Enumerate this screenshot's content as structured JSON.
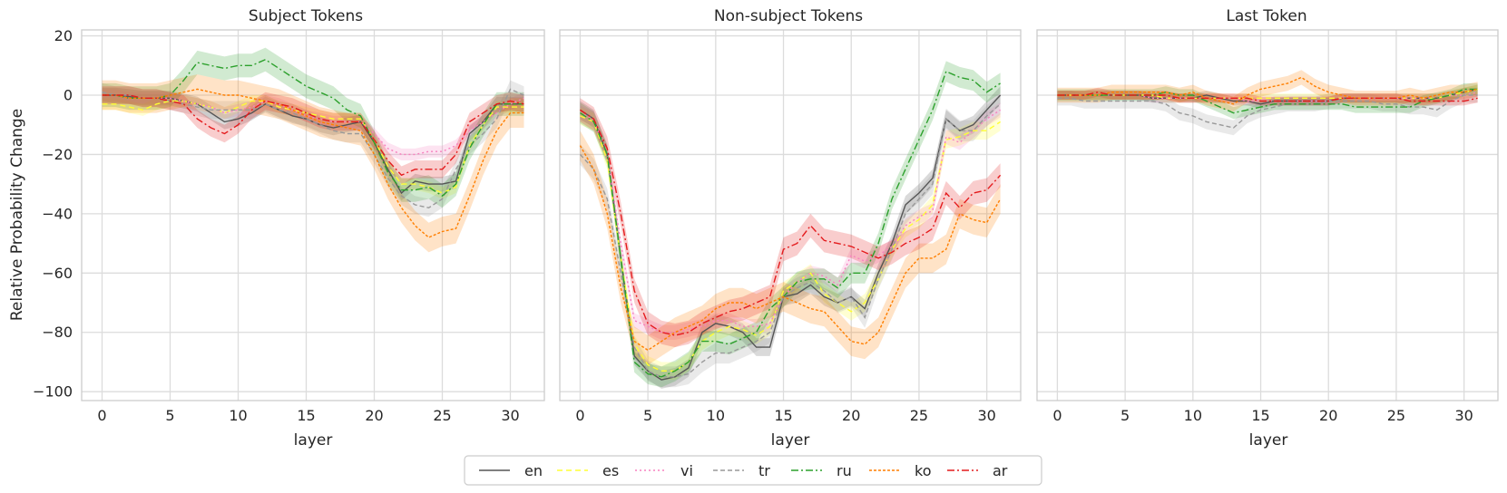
{
  "chart_data": {
    "type": "line",
    "ylabel": "Relative Probability Change",
    "xlabel": "layer",
    "xlim": [
      -1.5,
      32.5
    ],
    "ylim": [
      -103,
      22
    ],
    "xticks": [
      0,
      5,
      10,
      15,
      20,
      25,
      30
    ],
    "yticks": [
      20,
      0,
      -20,
      -40,
      -60,
      -80,
      -100
    ],
    "ytick_labels": [
      "20",
      "0",
      "−20",
      "−40",
      "−60",
      "−80",
      "−100"
    ],
    "legend_placement": "bottom-center",
    "series_styles": [
      {
        "name": "en",
        "color": "#555555",
        "dash": ""
      },
      {
        "name": "es",
        "color": "#ffff33",
        "dash": "6,4"
      },
      {
        "name": "vi",
        "color": "#f781bf",
        "dash": "2,3"
      },
      {
        "name": "tr",
        "color": "#999999",
        "dash": "5,3"
      },
      {
        "name": "ru",
        "color": "#2ca02c",
        "dash": "8,3,2,3"
      },
      {
        "name": "ko",
        "color": "#ff7f00",
        "dash": "3,2"
      },
      {
        "name": "ar",
        "color": "#e41a1c",
        "dash": "8,3,2,3"
      }
    ],
    "panels": [
      {
        "title": "Subject Tokens",
        "show_ylabels": true,
        "series": [
          {
            "name": "en",
            "band": 2.5,
            "values": [
              0,
              0,
              -0.5,
              -1,
              -1,
              -1,
              -2,
              -3,
              -6,
              -9,
              -8,
              -6,
              -3,
              -5,
              -7,
              -8,
              -10,
              -11,
              -10,
              -9,
              -16,
              -25,
              -33,
              -29,
              -30,
              -30,
              -29,
              -13,
              -9,
              -3,
              -3,
              -3
            ]
          },
          {
            "name": "es",
            "band": 2,
            "values": [
              -3,
              -3,
              -4,
              -5,
              -3,
              -2,
              -2,
              -3,
              -4,
              -6,
              -4,
              -2,
              -2,
              -4,
              -5,
              -6,
              -7,
              -8,
              -8,
              -8,
              -15,
              -24,
              -30,
              -30,
              -31,
              -33,
              -31,
              -17,
              -10,
              -4,
              -4,
              -4
            ]
          },
          {
            "name": "vi",
            "band": 2,
            "values": [
              0,
              0,
              -1,
              -1,
              -1,
              -1,
              -2,
              -3,
              -4,
              -6,
              -5,
              -4,
              -2,
              -3,
              -5,
              -7,
              -8,
              -9,
              -9,
              -9,
              -13,
              -18,
              -20,
              -20,
              -19,
              -19,
              -17,
              -12,
              -9,
              -6,
              -3,
              -1
            ]
          },
          {
            "name": "tr",
            "band": 3,
            "values": [
              1,
              0,
              0,
              -1,
              -1,
              -2,
              -3,
              -4,
              -5,
              -5,
              -5,
              -5,
              -3,
              -5,
              -6,
              -8,
              -10,
              -12,
              -13,
              -13,
              -20,
              -28,
              -34,
              -37,
              -38,
              -35,
              -25,
              -17,
              -13,
              -8,
              2,
              0
            ]
          },
          {
            "name": "ru",
            "band": 4,
            "values": [
              0,
              0,
              -1,
              -1,
              -1,
              0,
              5,
              11,
              10,
              9,
              10,
              10,
              12,
              9,
              6,
              3,
              1,
              -1,
              -5,
              -7,
              -16,
              -26,
              -32,
              -32,
              -31,
              -34,
              -30,
              -18,
              -10,
              -3,
              -3,
              -3
            ]
          },
          {
            "name": "ko",
            "band": 5,
            "values": [
              0,
              0,
              -1,
              -1,
              -1,
              0,
              1,
              2,
              1,
              0,
              0,
              -1,
              -2,
              -3,
              -5,
              -7,
              -9,
              -10,
              -11,
              -12,
              -20,
              -30,
              -38,
              -44,
              -48,
              -46,
              -45,
              -34,
              -22,
              -12,
              -6,
              -6
            ]
          },
          {
            "name": "ar",
            "band": 3,
            "values": [
              0,
              0,
              0,
              -1,
              -1,
              -2,
              -3,
              -8,
              -11,
              -13,
              -10,
              -5,
              -2,
              -3,
              -4,
              -6,
              -8,
              -9,
              -9,
              -9,
              -15,
              -22,
              -27,
              -25,
              -25,
              -25,
              -20,
              -9,
              -6,
              -3,
              -2,
              -3
            ]
          }
        ]
      },
      {
        "title": "Non-subject Tokens",
        "show_ylabels": false,
        "series": [
          {
            "name": "en",
            "band": 3,
            "values": [
              -5,
              -8,
              -20,
              -55,
              -88,
              -93,
              -96,
              -95,
              -92,
              -80,
              -77,
              -78,
              -80,
              -85,
              -85,
              -68,
              -67,
              -64,
              -68,
              -70,
              -68,
              -72,
              -60,
              -50,
              -37,
              -33,
              -28,
              -8,
              -12,
              -10,
              -5,
              0
            ]
          },
          {
            "name": "es",
            "band": 3,
            "values": [
              -7,
              -9,
              -22,
              -55,
              -84,
              -91,
              -93,
              -93,
              -90,
              -83,
              -80,
              -78,
              -79,
              -81,
              -78,
              -66,
              -63,
              -60,
              -67,
              -70,
              -73,
              -70,
              -62,
              -52,
              -45,
              -42,
              -37,
              -15,
              -14,
              -12,
              -12,
              -9
            ]
          },
          {
            "name": "vi",
            "band": 2.5,
            "values": [
              -6,
              -8,
              -20,
              -50,
              -76,
              -78,
              -80,
              -80,
              -79,
              -78,
              -76,
              -76,
              -78,
              -78,
              -77,
              -68,
              -63,
              -60,
              -61,
              -64,
              -54,
              -56,
              -54,
              -51,
              -44,
              -41,
              -39,
              -14,
              -16,
              -12,
              -8,
              -5
            ]
          },
          {
            "name": "tr",
            "band": 3.5,
            "values": [
              -20,
              -25,
              -35,
              -60,
              -85,
              -93,
              -95,
              -95,
              -94,
              -90,
              -87,
              -87,
              -85,
              -83,
              -80,
              -68,
              -65,
              -63,
              -66,
              -70,
              -68,
              -75,
              -62,
              -52,
              -40,
              -35,
              -30,
              -8,
              -12,
              -12,
              -7,
              -3
            ]
          },
          {
            "name": "ru",
            "band": 3.5,
            "values": [
              -6,
              -9,
              -20,
              -55,
              -90,
              -94,
              -95,
              -93,
              -90,
              -83,
              -83,
              -84,
              -82,
              -80,
              -72,
              -68,
              -63,
              -62,
              -62,
              -65,
              -60,
              -60,
              -50,
              -35,
              -25,
              -15,
              -5,
              8,
              6,
              5,
              1,
              4
            ]
          },
          {
            "name": "ko",
            "band": 5,
            "values": [
              -17,
              -25,
              -40,
              -65,
              -83,
              -86,
              -83,
              -80,
              -78,
              -76,
              -72,
              -70,
              -70,
              -72,
              -70,
              -68,
              -70,
              -72,
              -73,
              -78,
              -83,
              -84,
              -80,
              -70,
              -60,
              -55,
              -55,
              -52,
              -40,
              -42,
              -43,
              -35
            ]
          },
          {
            "name": "ar",
            "band": 4,
            "values": [
              -5,
              -8,
              -18,
              -40,
              -66,
              -77,
              -80,
              -81,
              -80,
              -77,
              -75,
              -73,
              -72,
              -70,
              -68,
              -52,
              -50,
              -44,
              -49,
              -50,
              -51,
              -53,
              -55,
              -53,
              -50,
              -48,
              -45,
              -33,
              -38,
              -33,
              -32,
              -27
            ]
          }
        ]
      },
      {
        "title": "Last Token",
        "show_ylabels": false,
        "series": [
          {
            "name": "en",
            "band": 1.5,
            "values": [
              0,
              0,
              0,
              0,
              0,
              0,
              0,
              -1,
              -1,
              -1,
              -1,
              0,
              -1,
              -2,
              -2,
              -3,
              -2,
              -2,
              -2,
              -2,
              -2,
              -1,
              -1,
              -1,
              -1,
              -1,
              -1,
              -1,
              -1,
              0,
              1,
              2
            ]
          },
          {
            "name": "es",
            "band": 1.5,
            "values": [
              0,
              0,
              0,
              0,
              0,
              0,
              0,
              0,
              -1,
              -1,
              -1,
              -1,
              -1,
              -1,
              -1,
              -1,
              -1,
              -1,
              -1,
              -1,
              -1,
              -1,
              -1,
              -1,
              -1,
              -1,
              -1,
              -1,
              -1,
              0,
              1,
              2
            ]
          },
          {
            "name": "vi",
            "band": 1.5,
            "values": [
              0,
              0,
              0,
              0,
              0,
              0,
              0,
              -1,
              -1,
              -1,
              -1,
              -1,
              -1,
              -1,
              -2,
              -2,
              -2,
              -2,
              -2,
              -2,
              -2,
              -1,
              -1,
              -1,
              -1,
              -1,
              -1,
              -1,
              -1,
              0,
              0,
              1
            ]
          },
          {
            "name": "tr",
            "band": 2.5,
            "values": [
              -1,
              -1,
              -2,
              -2,
              -2,
              -2,
              -2,
              -2,
              -3,
              -6,
              -7,
              -9,
              -10,
              -11,
              -7,
              -5,
              -4,
              -3,
              -3,
              -3,
              -2,
              -2,
              -2,
              -2,
              -3,
              -3,
              -4,
              -4,
              -5,
              -2,
              0,
              0
            ]
          },
          {
            "name": "ru",
            "band": 2,
            "values": [
              0,
              0,
              0,
              0,
              0,
              0,
              0,
              0,
              1,
              0,
              0,
              -2,
              -4,
              -6,
              -5,
              -4,
              -3,
              -3,
              -3,
              -3,
              -3,
              -3,
              -4,
              -4,
              -4,
              -4,
              -4,
              -2,
              -1,
              0,
              2,
              2
            ]
          },
          {
            "name": "ko",
            "band": 2.5,
            "values": [
              0,
              0,
              0,
              0,
              1,
              1,
              1,
              1,
              1,
              0,
              1,
              -1,
              -2,
              -3,
              0,
              2,
              3,
              4,
              6,
              3,
              1,
              0,
              -1,
              -1,
              -1,
              -1,
              0,
              -1,
              0,
              1,
              1,
              2
            ]
          },
          {
            "name": "ar",
            "band": 1.5,
            "values": [
              0,
              0,
              0,
              1,
              0,
              0,
              0,
              0,
              0,
              -1,
              -1,
              -1,
              -1,
              -1,
              -1,
              -2,
              -2,
              -2,
              -2,
              -2,
              -2,
              -1,
              -1,
              -1,
              -1,
              -1,
              -2,
              -2,
              -2,
              -2,
              -2,
              -1
            ]
          }
        ]
      }
    ]
  }
}
